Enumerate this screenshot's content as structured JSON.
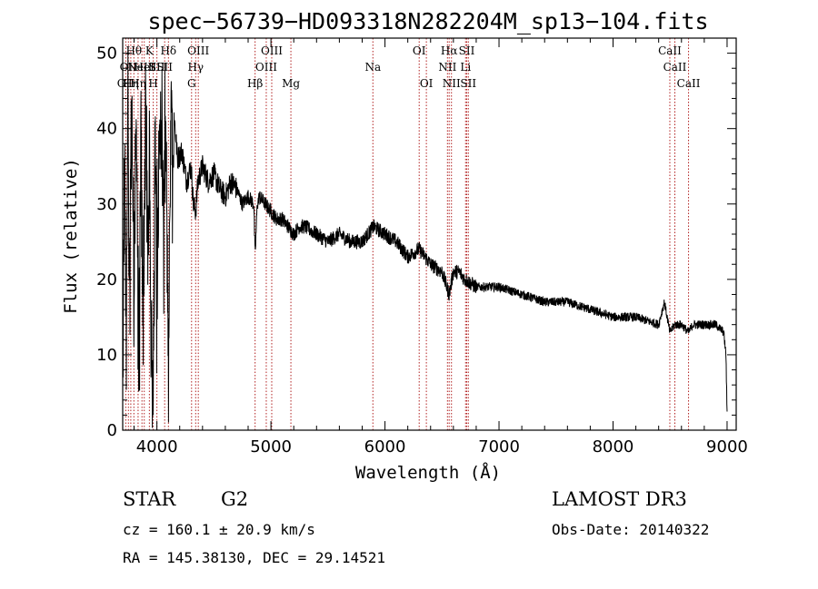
{
  "chart_data": {
    "type": "line",
    "title": "spec−56739−HD093318N282204M_sp13−104.fits",
    "xlabel": "Wavelength (Å)",
    "ylabel": "Flux (relative)",
    "xlim": [
      3700,
      9080
    ],
    "ylim": [
      0,
      52
    ],
    "xticks": [
      4000,
      5000,
      6000,
      7000,
      8000,
      9000
    ],
    "yticks": [
      0,
      10,
      20,
      30,
      40,
      50
    ],
    "grid": false,
    "series": [
      {
        "name": "flux",
        "x": [
          3700,
          3715,
          3730,
          3745,
          3760,
          3780,
          3800,
          3820,
          3840,
          3860,
          3880,
          3900,
          3920,
          3935,
          3950,
          3968,
          3985,
          4000,
          4030,
          4060,
          4080,
          4101,
          4120,
          4150,
          4180,
          4220,
          4260,
          4300,
          4320,
          4340,
          4360,
          4400,
          4450,
          4500,
          4550,
          4600,
          4650,
          4700,
          4750,
          4800,
          4850,
          4861,
          4880,
          4900,
          4950,
          5000,
          5050,
          5100,
          5150,
          5200,
          5250,
          5300,
          5400,
          5500,
          5600,
          5700,
          5800,
          5900,
          6000,
          6100,
          6200,
          6300,
          6400,
          6500,
          6563,
          6600,
          6650,
          6700,
          6800,
          6900,
          7000,
          7200,
          7400,
          7600,
          7800,
          8000,
          8200,
          8400,
          8450,
          8498,
          8542,
          8600,
          8662,
          8700,
          8800,
          8900,
          8970,
          8990,
          9000
        ],
        "values": [
          2,
          38,
          12,
          46,
          20,
          44,
          22,
          43,
          8,
          40,
          14,
          41,
          23,
          38,
          9,
          4,
          36,
          24,
          41,
          30,
          39,
          6,
          38,
          42,
          36,
          37,
          33,
          35,
          30,
          29,
          33,
          35,
          33,
          34,
          32,
          31,
          33,
          32,
          30,
          31,
          30,
          23,
          30,
          31,
          30,
          29,
          28,
          28,
          27,
          26,
          27,
          27,
          26,
          25,
          26,
          25,
          25,
          27,
          26,
          25,
          23,
          24,
          22,
          21,
          18,
          21,
          21,
          20,
          19,
          19,
          19,
          18,
          17,
          17,
          16,
          15,
          15,
          14,
          17,
          13,
          14,
          14,
          13,
          14,
          14,
          14,
          13,
          10,
          2
        ]
      }
    ],
    "line_markers": [
      {
        "wave": 3727,
        "row": 2,
        "label": "OII"
      },
      {
        "wave": 3750,
        "row": 1,
        "label": "OII"
      },
      {
        "wave": 3771,
        "row": 2,
        "label": "Hη"
      },
      {
        "wave": 3798,
        "row": 0,
        "label": "Hθ"
      },
      {
        "wave": 3835,
        "row": 2,
        "label": "Hη"
      },
      {
        "wave": 3869,
        "row": 1,
        "label": "NeIII"
      },
      {
        "wave": 3889,
        "row": 1,
        "label": "HeI"
      },
      {
        "wave": 3934,
        "row": 0,
        "label": "K"
      },
      {
        "wave": 3968,
        "row": 2,
        "label": "H"
      },
      {
        "wave": 4000,
        "row": 1,
        "label": "SII"
      },
      {
        "wave": 4101,
        "row": 0,
        "label": "Hδ"
      },
      {
        "wave": 4068,
        "row": 1,
        "label": "SII"
      },
      {
        "wave": 4304,
        "row": 2,
        "label": "G"
      },
      {
        "wave": 4340,
        "row": 1,
        "label": "Hγ"
      },
      {
        "wave": 4363,
        "row": 0,
        "label": "OIII"
      },
      {
        "wave": 4861,
        "row": 2,
        "label": "Hβ"
      },
      {
        "wave": 4959,
        "row": 1,
        "label": "OIII"
      },
      {
        "wave": 5007,
        "row": 0,
        "label": "OIII"
      },
      {
        "wave": 5175,
        "row": 2,
        "label": "Mg"
      },
      {
        "wave": 5894,
        "row": 1,
        "label": "Na"
      },
      {
        "wave": 6300,
        "row": 0,
        "label": "OI"
      },
      {
        "wave": 6363,
        "row": 2,
        "label": "OI"
      },
      {
        "wave": 6548,
        "row": 1,
        "label": "NII"
      },
      {
        "wave": 6563,
        "row": 0,
        "label": "Hα"
      },
      {
        "wave": 6583,
        "row": 2,
        "label": "NII"
      },
      {
        "wave": 6707,
        "row": 1,
        "label": "Li"
      },
      {
        "wave": 6717,
        "row": 0,
        "label": "SII"
      },
      {
        "wave": 6731,
        "row": 2,
        "label": "SII"
      },
      {
        "wave": 8498,
        "row": 0,
        "label": "CaII"
      },
      {
        "wave": 8542,
        "row": 1,
        "label": "CaII"
      },
      {
        "wave": 8662,
        "row": 2,
        "label": "CaII"
      }
    ]
  },
  "info": {
    "object_class": "STAR",
    "subclass": "G2",
    "survey": "LAMOST DR3",
    "cz": "cz = 160.1 ± 20.9 km/s",
    "obs_date": "Obs-Date: 20140322",
    "coords": "RA = 145.38130, DEC =  29.14521"
  },
  "colors": {
    "axis": "#000000",
    "spectrum": "#000000",
    "line_marker": "#b22222"
  }
}
